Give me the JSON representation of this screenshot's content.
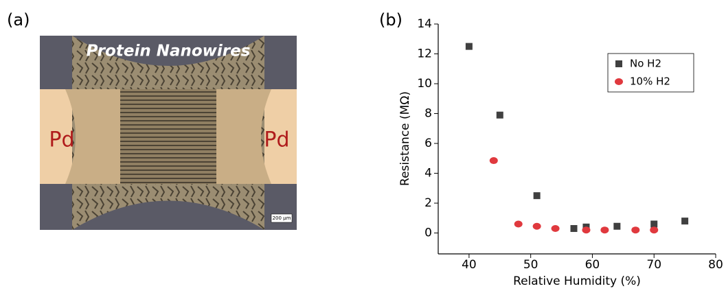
{
  "panel_labels": [
    "(a)",
    "(b)"
  ],
  "micrograph": {
    "title": "Protein Nanowires",
    "electrode_left": "Pd",
    "electrode_right": "Pd",
    "scale_bar": "200 µm"
  },
  "chart_data": {
    "type": "scatter",
    "x_label": "Relative Humidity (%)",
    "y_label": "Resistance (MΩ)",
    "xlim": [
      35,
      80
    ],
    "xticks": [
      40,
      50,
      60,
      70,
      80
    ],
    "ylim": [
      -1.4,
      14
    ],
    "yticks": [
      0,
      2,
      4,
      6,
      8,
      10,
      12,
      14
    ],
    "legend": "upper right",
    "series": [
      {
        "name": "No H2",
        "color": "#404040",
        "marker": "square",
        "x": [
          40,
          45,
          51,
          57,
          59,
          64,
          70,
          75
        ],
        "values": [
          12.5,
          7.9,
          2.5,
          0.3,
          0.4,
          0.45,
          0.6,
          0.8
        ]
      },
      {
        "name": "10% H2",
        "color": "#e0393e",
        "marker": "circle",
        "x": [
          44,
          48,
          51,
          54,
          59,
          62,
          67,
          70
        ],
        "values": [
          4.85,
          0.6,
          0.45,
          0.3,
          0.2,
          0.2,
          0.2,
          0.2
        ]
      }
    ]
  }
}
